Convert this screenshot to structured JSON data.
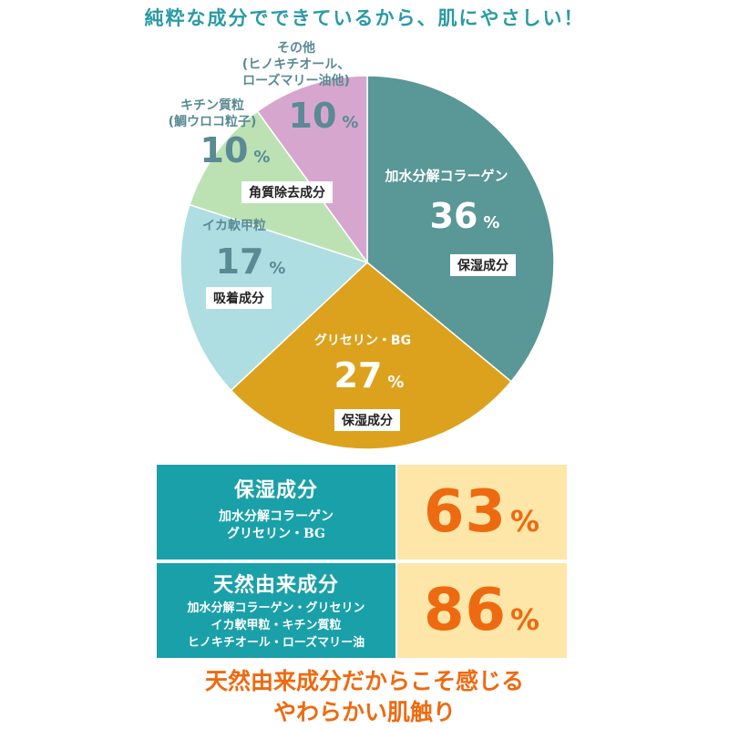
{
  "headline": "純粋な成分でできているから、肌にやさしい！",
  "chart_data": {
    "type": "pie",
    "unit": "%",
    "slices": [
      {
        "label": "加水分解コラーゲン",
        "value": 36,
        "tag": "保湿成分",
        "color": "#5a9797",
        "textColor": "#ffffff"
      },
      {
        "label": "グリセリン・BG",
        "value": 27,
        "tag": "保湿成分",
        "color": "#dca21e",
        "textColor": "#ffffff"
      },
      {
        "label": "イカ軟甲粒",
        "value": 17,
        "tag": "吸着成分",
        "color": "#aedde2",
        "textColor": "#5a8a94"
      },
      {
        "label": "キチン質粒\n(鯛ウロコ粒子)",
        "value": 10,
        "tag": "角質除去成分",
        "color": "#bce2b4",
        "textColor": "#5a8a94"
      },
      {
        "label": "その他\n(ヒノキチオール、\nローズマリー油他)",
        "value": 10,
        "tag": "",
        "color": "#d6a6cf",
        "textColor": "#5a8a94"
      }
    ]
  },
  "stats": [
    {
      "title": "保湿成分",
      "lines": [
        "加水分解コラーゲン",
        "グリセリン・BG"
      ],
      "value": "63",
      "unit": "%"
    },
    {
      "title": "天然由来成分",
      "lines": [
        "加水分解コラーゲン・グリセリン",
        "イカ軟甲粒・キチン質粒",
        "ヒノキチオール・ローズマリー油"
      ],
      "value": "86",
      "unit": "%"
    }
  ],
  "closing": [
    "天然由来成分だからこそ感じる",
    "やわらかい肌触り"
  ]
}
